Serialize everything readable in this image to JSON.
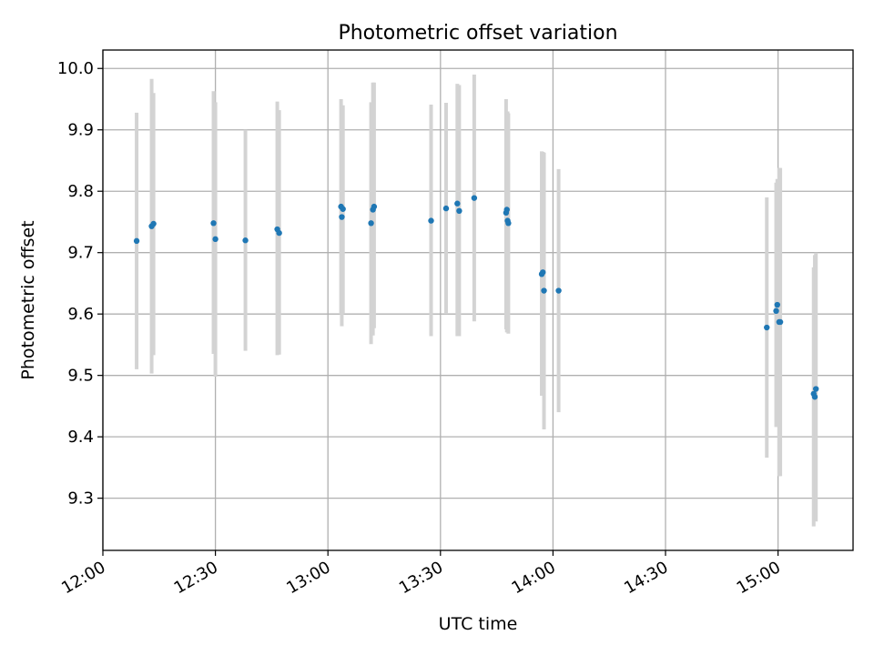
{
  "chart_data": {
    "type": "scatter",
    "title": "Photometric offset variation",
    "xlabel": "UTC time",
    "ylabel": "Photometric offset",
    "x_tick_labels": [
      "12:00",
      "12:30",
      "13:00",
      "13:30",
      "14:00",
      "14:30",
      "15:00"
    ],
    "y_tick_labels": [
      "9.3",
      "9.4",
      "9.5",
      "9.6",
      "9.7",
      "9.8",
      "9.9",
      "10.0"
    ],
    "x_ticks": [
      "12:00",
      "12:30",
      "13:00",
      "13:30",
      "14:00",
      "14:30",
      "15:00"
    ],
    "y_ticks": [
      9.3,
      9.4,
      9.5,
      9.6,
      9.7,
      9.8,
      9.9,
      10.0
    ],
    "xlim": [
      "12:00",
      "15:20"
    ],
    "ylim": [
      9.215,
      10.03
    ],
    "grid": true,
    "colors": {
      "point": "#1f77b4",
      "errorbar": "#d3d3d3",
      "grid": "#b0b0b0"
    },
    "points": [
      {
        "t": "12:09",
        "y": 9.719,
        "lo": 9.51,
        "hi": 9.928
      },
      {
        "t": "12:13",
        "y": 9.743,
        "lo": 9.503,
        "hi": 9.983
      },
      {
        "t": "12:13.5",
        "y": 9.747,
        "lo": 9.533,
        "hi": 9.96
      },
      {
        "t": "12:29.5",
        "y": 9.748,
        "lo": 9.535,
        "hi": 9.963
      },
      {
        "t": "12:30",
        "y": 9.722,
        "lo": 9.498,
        "hi": 9.945
      },
      {
        "t": "12:38",
        "y": 9.72,
        "lo": 9.54,
        "hi": 9.9
      },
      {
        "t": "12:46.5",
        "y": 9.738,
        "lo": 9.533,
        "hi": 9.946
      },
      {
        "t": "12:47",
        "y": 9.732,
        "lo": 9.534,
        "hi": 9.932
      },
      {
        "t": "13:03.5",
        "y": 9.775,
        "lo": 9.6,
        "hi": 9.95
      },
      {
        "t": "13:03.7",
        "y": 9.758,
        "lo": 9.58,
        "hi": 9.935
      },
      {
        "t": "13:04",
        "y": 9.771,
        "lo": 9.6,
        "hi": 9.94
      },
      {
        "t": "13:11.5",
        "y": 9.748,
        "lo": 9.551,
        "hi": 9.945
      },
      {
        "t": "13:12",
        "y": 9.77,
        "lo": 9.565,
        "hi": 9.977
      },
      {
        "t": "13:12.3",
        "y": 9.775,
        "lo": 9.577,
        "hi": 9.977
      },
      {
        "t": "13:27.5",
        "y": 9.752,
        "lo": 9.564,
        "hi": 9.941
      },
      {
        "t": "13:31.5",
        "y": 9.772,
        "lo": 9.6,
        "hi": 9.944
      },
      {
        "t": "13:34.5",
        "y": 9.78,
        "lo": 9.564,
        "hi": 9.975
      },
      {
        "t": "13:35",
        "y": 9.768,
        "lo": 9.564,
        "hi": 9.973
      },
      {
        "t": "13:39",
        "y": 9.789,
        "lo": 9.588,
        "hi": 9.99
      },
      {
        "t": "13:47.5",
        "y": 9.765,
        "lo": 9.575,
        "hi": 9.95
      },
      {
        "t": "13:47.7",
        "y": 9.77,
        "lo": 9.57,
        "hi": 9.928
      },
      {
        "t": "13:47.9",
        "y": 9.752,
        "lo": 9.573,
        "hi": 9.93
      },
      {
        "t": "13:48.1",
        "y": 9.748,
        "lo": 9.568,
        "hi": 9.927
      },
      {
        "t": "13:57",
        "y": 9.665,
        "lo": 9.467,
        "hi": 9.865
      },
      {
        "t": "13:57.3",
        "y": 9.668,
        "lo": 9.47,
        "hi": 9.864
      },
      {
        "t": "13:57.6",
        "y": 9.638,
        "lo": 9.412,
        "hi": 9.863
      },
      {
        "t": "14:01.5",
        "y": 9.638,
        "lo": 9.44,
        "hi": 9.836
      },
      {
        "t": "14:57",
        "y": 9.578,
        "lo": 9.366,
        "hi": 9.79
      },
      {
        "t": "14:59.5",
        "y": 9.605,
        "lo": 9.416,
        "hi": 9.814
      },
      {
        "t": "14:59.8",
        "y": 9.615,
        "lo": 9.42,
        "hi": 9.82
      },
      {
        "t": "15:00.3",
        "y": 9.587,
        "lo": 9.336,
        "hi": 9.838
      },
      {
        "t": "15:00.6",
        "y": 9.587,
        "lo": 9.336,
        "hi": 9.838
      },
      {
        "t": "15:09.5",
        "y": 9.47,
        "lo": 9.254,
        "hi": 9.676
      },
      {
        "t": "15:09.8",
        "y": 9.465,
        "lo": 9.267,
        "hi": 9.696
      },
      {
        "t": "15:10.1",
        "y": 9.478,
        "lo": 9.262,
        "hi": 9.7
      }
    ]
  }
}
